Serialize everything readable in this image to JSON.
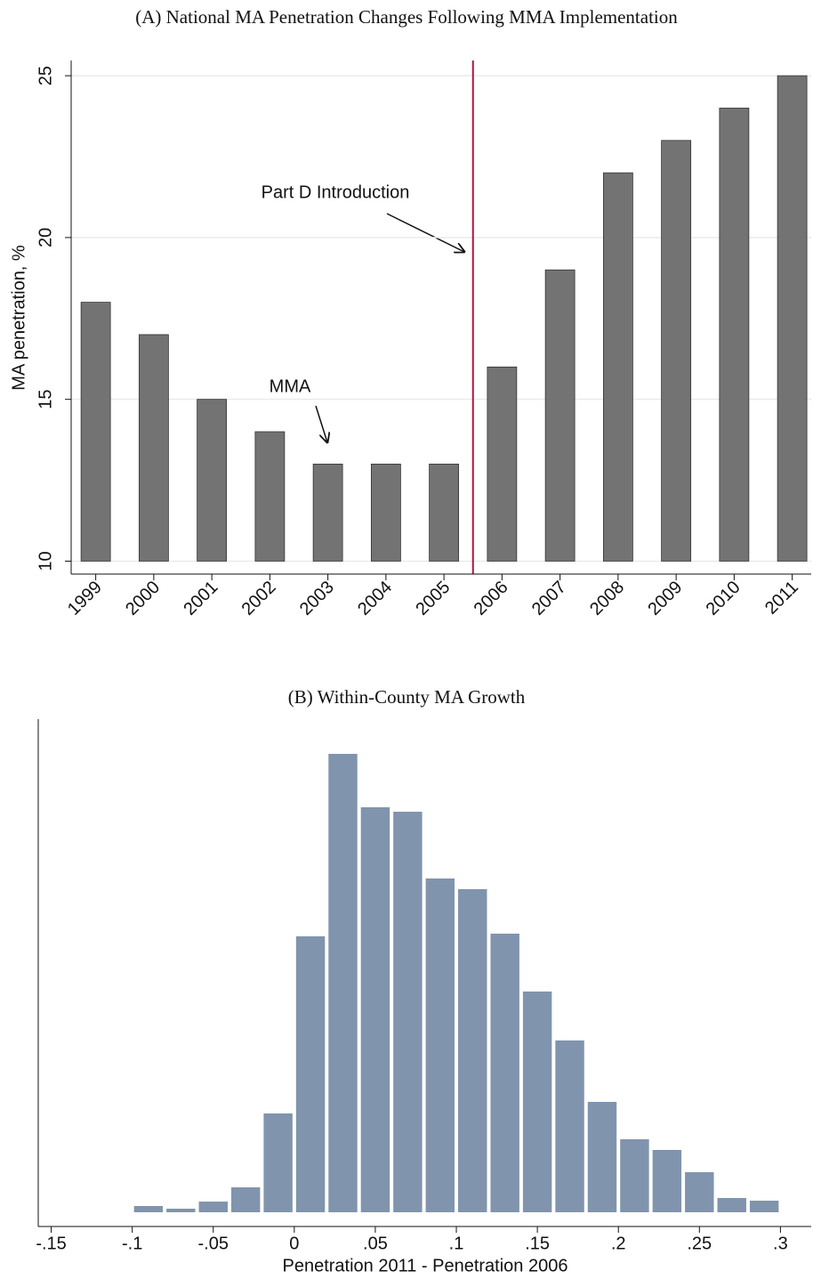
{
  "chart_data": [
    {
      "type": "bar",
      "title": "(A)  National MA Penetration Changes Following MMA Implementation",
      "categories": [
        "1999",
        "2000",
        "2001",
        "2002",
        "2003",
        "2004",
        "2005",
        "2006",
        "2007",
        "2008",
        "2009",
        "2010",
        "2011"
      ],
      "values": [
        18,
        17,
        15,
        14,
        13,
        13,
        13,
        16,
        19,
        22,
        23,
        24,
        25
      ],
      "base": 10,
      "color": "#737373",
      "ylabel": "MA penetration, %",
      "ylim": [
        9.6,
        25.47
      ],
      "yticks": [
        10,
        15,
        20,
        25
      ],
      "grid": true,
      "vline_color": "#b0143c",
      "annotations": [
        "Part D Introduction",
        "MMA"
      ]
    },
    {
      "type": "histogram",
      "title": "(B)  Within-County MA Growth",
      "bins": [
        -0.1,
        -0.08,
        -0.06,
        -0.04,
        -0.02,
        0,
        0.02,
        0.04,
        0.06,
        0.08,
        0.1,
        0.12,
        0.14,
        0.16,
        0.18,
        0.2,
        0.22,
        0.24,
        0.26,
        0.28,
        0.3
      ],
      "values": [
        7,
        4,
        12,
        28,
        111,
        310,
        515,
        455,
        450,
        375,
        363,
        313,
        248,
        193,
        124,
        82,
        70,
        45,
        16,
        13
      ],
      "color": "#8094ad",
      "xlabel": "Penetration 2011 - Penetration 2006",
      "xlim": [
        -0.158,
        0.319
      ],
      "ylim": [
        -16,
        554
      ],
      "xticks": [
        {
          "value": -0.15,
          "label": "-.15"
        },
        {
          "value": -0.1,
          "label": "-.1"
        },
        {
          "value": -0.05,
          "label": "-.05"
        },
        0,
        {
          "value": 0.05,
          "label": ".05"
        },
        {
          "value": 0.1,
          "label": ".1"
        },
        {
          "value": 0.15,
          "label": ".15"
        },
        {
          "value": 0.2,
          "label": ".2"
        },
        {
          "value": 0.25,
          "label": ".25"
        },
        {
          "value": 0.3,
          "label": ".3"
        }
      ]
    }
  ]
}
